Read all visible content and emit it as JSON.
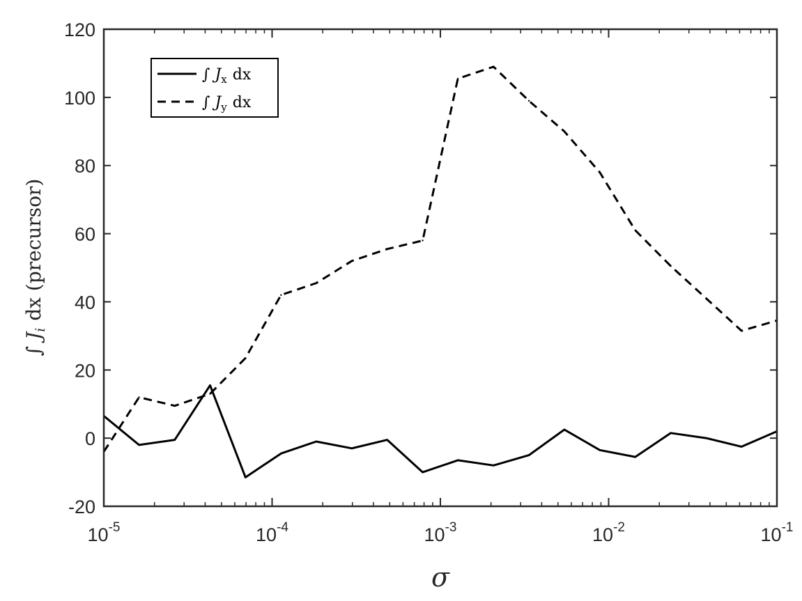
{
  "chart_data": {
    "type": "line",
    "xlabel": "σ",
    "ylabel": "∫ J_i dx (precursor)",
    "xscale": "log",
    "xlim": [
      1e-05,
      0.1
    ],
    "ylim": [
      -20,
      120
    ],
    "grid": false,
    "legend_position": "top-left",
    "x_ticks": [
      {
        "value": 1e-05,
        "base": "10",
        "exp": "-5"
      },
      {
        "value": 0.0001,
        "base": "10",
        "exp": "-4"
      },
      {
        "value": 0.001,
        "base": "10",
        "exp": "-3"
      },
      {
        "value": 0.01,
        "base": "10",
        "exp": "-2"
      },
      {
        "value": 0.1,
        "base": "10",
        "exp": "-1"
      }
    ],
    "y_ticks": [
      {
        "value": -20,
        "label": "-20"
      },
      {
        "value": 0,
        "label": "0"
      },
      {
        "value": 20,
        "label": "20"
      },
      {
        "value": 40,
        "label": "40"
      },
      {
        "value": 60,
        "label": "60"
      },
      {
        "value": 80,
        "label": "80"
      },
      {
        "value": 100,
        "label": "100"
      },
      {
        "value": 120,
        "label": "120"
      }
    ],
    "x": [
      1e-05,
      1.62e-05,
      2.64e-05,
      4.28e-05,
      6.95e-05,
      0.000113,
      0.000183,
      0.000298,
      0.000483,
      0.000785,
      0.00127,
      0.00207,
      0.00336,
      0.00546,
      0.00886,
      0.0144,
      0.0234,
      0.038,
      0.0616,
      0.1
    ],
    "series": [
      {
        "name": "∫ J_x dx",
        "style": "solid",
        "color": "#000000",
        "values": [
          6.5,
          -2,
          -0.5,
          15.5,
          -11.5,
          -4.5,
          -1,
          -3,
          -0.5,
          -10,
          -6.5,
          -8,
          -5,
          2.5,
          -3.5,
          -5.5,
          1.5,
          0,
          -2.5,
          2
        ]
      },
      {
        "name": "∫ J_y dx",
        "style": "dashed",
        "color": "#000000",
        "values": [
          -4,
          12,
          9.5,
          13,
          23.5,
          42,
          45.5,
          52,
          55.5,
          58,
          105.5,
          109,
          99,
          90,
          78,
          61,
          50.5,
          41,
          31.5,
          34.5
        ]
      }
    ],
    "legend": [
      {
        "label_main": "∫ J",
        "label_sub": "x",
        "label_tail": "dx",
        "style": "solid"
      },
      {
        "label_main": "∫ J",
        "label_sub": "y",
        "label_tail": "dx",
        "style": "dashed"
      }
    ],
    "ylabel_parts": {
      "main": "∫ J",
      "sub": "i",
      "tail": "dx (precursor)"
    }
  }
}
